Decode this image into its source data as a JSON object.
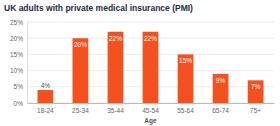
{
  "chart_data": {
    "type": "bar",
    "title": "UK adults with private medical insurance (PMI)",
    "x_label": "Age",
    "categories": [
      "18-24",
      "25-34",
      "35-44",
      "45-54",
      "55-64",
      "65-74",
      "75+"
    ],
    "values": [
      4,
      20,
      22,
      22,
      15,
      9,
      7
    ],
    "value_labels": [
      "4%",
      "20%",
      "22%",
      "22%",
      "15%",
      "9%",
      "7%"
    ],
    "color": "#f4511e",
    "ylim": [
      0,
      25
    ],
    "yticks": [
      {
        "value": 0,
        "label": "0%"
      },
      {
        "value": 5,
        "label": "5%"
      },
      {
        "value": 10,
        "label": "10%"
      },
      {
        "value": 15,
        "label": "15%"
      },
      {
        "value": 20,
        "label": "20%"
      },
      {
        "value": 25,
        "label": "25%"
      }
    ],
    "grid": true,
    "data_labels": true
  }
}
